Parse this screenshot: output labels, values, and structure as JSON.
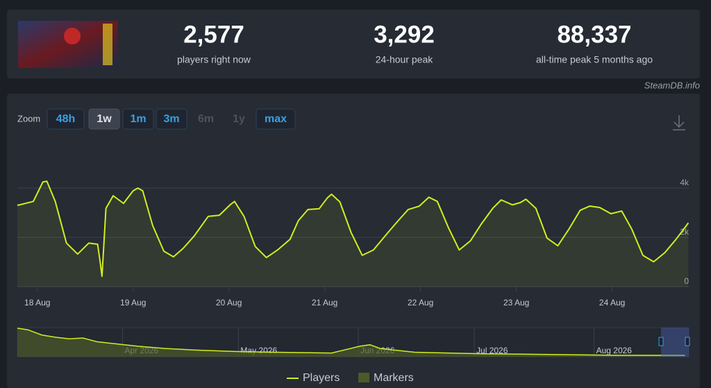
{
  "header": {
    "stats": [
      {
        "value": "2,577",
        "label": "players right now"
      },
      {
        "value": "3,292",
        "label": "24-hour peak"
      },
      {
        "value": "88,337",
        "label": "all-time peak 5 months ago"
      }
    ]
  },
  "brand": "SteamDB.info",
  "zoom": {
    "label": "Zoom",
    "buttons": [
      {
        "label": "48h"
      },
      {
        "label": "1w",
        "active": true
      },
      {
        "label": "1m"
      },
      {
        "label": "3m"
      },
      {
        "label": "6m",
        "disabled": true
      },
      {
        "label": "1y",
        "disabled": true
      },
      {
        "label": "max"
      }
    ]
  },
  "chart_data": {
    "type": "line",
    "x": [
      -5.0,
      -1.0,
      1.4,
      2.4,
      4.5,
      7.3,
      10.1,
      12.9,
      15.1,
      15.8,
      16.2,
      17.2,
      19.0,
      21.6,
      24.0,
      25.2,
      26.4,
      28.9,
      31.7,
      34.1,
      36.5,
      39.3,
      42.8,
      45.6,
      48.3,
      49.4,
      51.8,
      54.6,
      57.4,
      60.2,
      63.3,
      65.4,
      67.8,
      70.6,
      72.7,
      73.7,
      75.8,
      78.6,
      81.4,
      84.2,
      87.7,
      90.4,
      92.9,
      95.7,
      98.1,
      100.2,
      103.0,
      105.7,
      108.5,
      111.3,
      114.1,
      116.2,
      119.0,
      121.0,
      122.4,
      124.9,
      127.7,
      130.4,
      133.2,
      136.0,
      138.4,
      140.9,
      143.7,
      146.4,
      148.9,
      151.7,
      154.4,
      157.2,
      160.0,
      163.1
    ],
    "series": [
      {
        "name": "Players",
        "color": "#d2ee1f",
        "values": [
          3300,
          3460,
          4250,
          4280,
          3460,
          1770,
          1320,
          1770,
          1720,
          930,
          420,
          3180,
          3690,
          3380,
          3890,
          4000,
          3890,
          2480,
          1440,
          1210,
          1550,
          2060,
          2850,
          2900,
          3320,
          3460,
          2850,
          1630,
          1180,
          1490,
          1920,
          2680,
          3130,
          3160,
          3610,
          3750,
          3440,
          2200,
          1270,
          1490,
          2170,
          2680,
          3130,
          3270,
          3630,
          3460,
          2390,
          1490,
          1860,
          2560,
          3180,
          3520,
          3320,
          3410,
          3550,
          3180,
          1970,
          1660,
          2340,
          3100,
          3270,
          3210,
          2960,
          3070,
          2340,
          1270,
          1010,
          1380,
          1920,
          2590
        ]
      }
    ],
    "markers": {
      "name": "Markers",
      "color": "#4b5a2a"
    },
    "xlim": [
      -5,
      163.2
    ],
    "xticks": [
      {
        "value": 0,
        "label": "18 Aug"
      },
      {
        "value": 24,
        "label": "19 Aug"
      },
      {
        "value": 48,
        "label": "20 Aug"
      },
      {
        "value": 72,
        "label": "21 Aug"
      },
      {
        "value": 96,
        "label": "22 Aug"
      },
      {
        "value": 120,
        "label": "23 Aug"
      },
      {
        "value": 144,
        "label": "24 Aug"
      }
    ],
    "ylim": [
      0,
      6000
    ],
    "yticks": [
      0,
      {
        "value": 2000,
        "label": "2k"
      },
      {
        "value": 4000,
        "label": "4k"
      }
    ],
    "grid": true,
    "navigator": {
      "x": [
        -27.2,
        -24.5,
        -20.9,
        -17.3,
        -13.8,
        -10.2,
        -6.6,
        -1.3,
        4.1,
        11.2,
        18.4,
        29.1,
        39.8,
        54.1,
        61.3,
        64.0,
        66.7,
        75.6,
        93.4,
        111.3,
        129.1,
        145.5
      ],
      "values": [
        88000,
        83400,
        67200,
        60200,
        55600,
        57900,
        46300,
        39400,
        32400,
        25500,
        20800,
        16200,
        13900,
        11600,
        32400,
        37100,
        25500,
        13900,
        9300,
        6900,
        4600,
        4600
      ],
      "xlim": [
        -27.2,
        146.5
      ],
      "ylim": [
        0,
        90000
      ],
      "xticks": [
        {
          "value": 0,
          "label": "Apr 2026"
        },
        {
          "value": 30,
          "label": "May 2026"
        },
        {
          "value": 61,
          "label": "Jun 2026"
        },
        {
          "value": 91,
          "label": "Jul 2026"
        },
        {
          "value": 122,
          "label": "Aug 2026"
        }
      ]
    }
  }
}
